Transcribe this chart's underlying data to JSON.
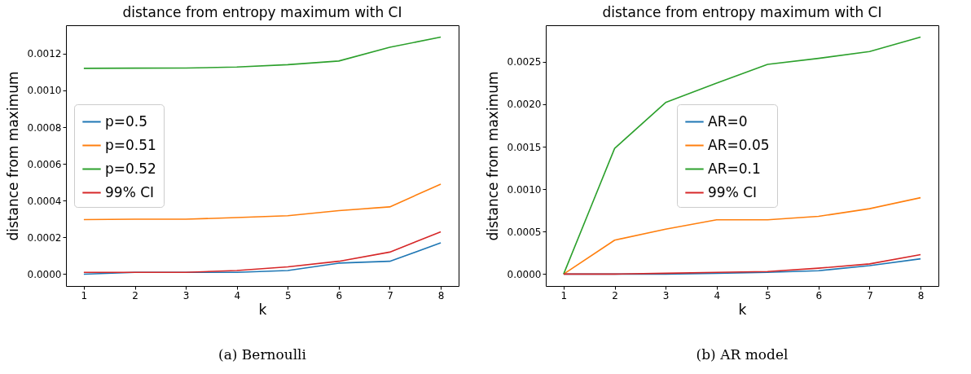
{
  "chart_data": [
    {
      "type": "line",
      "title": "distance from entropy maximum with CI",
      "xlabel": "k",
      "ylabel": "distance from maximum",
      "x": [
        1,
        2,
        3,
        4,
        5,
        6,
        7,
        8
      ],
      "xlim": [
        0.65,
        8.35
      ],
      "xticks": [
        1,
        2,
        3,
        4,
        5,
        6,
        7,
        8
      ],
      "ylim": [
        -6.45e-05,
        0.0013545
      ],
      "yticks": [
        {
          "value": 0,
          "label": "0.0000"
        },
        {
          "value": 0.0002,
          "label": "0.0002"
        },
        {
          "value": 0.0004,
          "label": "0.0004"
        },
        {
          "value": 0.0006,
          "label": "0.0006"
        },
        {
          "value": 0.0008,
          "label": "0.0008"
        },
        {
          "value": 0.001,
          "label": "0.0010"
        },
        {
          "value": 0.0012,
          "label": "0.0012"
        }
      ],
      "grid": false,
      "legend": "left",
      "annotations": [
        "(a) Bernoulli"
      ],
      "series": [
        {
          "name": "p=0.5",
          "color": "#1f77b4",
          "values": [
            0,
            1e-05,
            1e-05,
            1e-05,
            2e-05,
            6e-05,
            7e-05,
            0.00017
          ]
        },
        {
          "name": "p=0.51",
          "color": "#ff7f0e",
          "values": [
            0.000297,
            0.000299,
            0.000299,
            0.000308,
            0.000318,
            0.000346,
            0.000366,
            0.00049
          ]
        },
        {
          "name": "p=0.52",
          "color": "#2ca02c",
          "values": [
            0.00112,
            0.001121,
            0.001122,
            0.001127,
            0.00114,
            0.00116,
            0.001235,
            0.00129
          ]
        },
        {
          "name": "99% CI",
          "color": "#d62728",
          "values": [
            1e-05,
            1e-05,
            1e-05,
            2e-05,
            4e-05,
            7e-05,
            0.00012,
            0.00023
          ]
        }
      ]
    },
    {
      "type": "line",
      "title": "distance from entropy maximum with CI",
      "xlabel": "k",
      "ylabel": "distance from maximum",
      "x": [
        1,
        2,
        3,
        4,
        5,
        6,
        7,
        8
      ],
      "xlim": [
        0.65,
        8.35
      ],
      "xticks": [
        1,
        2,
        3,
        4,
        5,
        6,
        7,
        8
      ],
      "ylim": [
        -0.00014,
        0.00293
      ],
      "yticks": [
        {
          "value": 0,
          "label": "0.0000"
        },
        {
          "value": 0.0005,
          "label": "0.0005"
        },
        {
          "value": 0.001,
          "label": "0.0010"
        },
        {
          "value": 0.0015,
          "label": "0.0015"
        },
        {
          "value": 0.002,
          "label": "0.0020"
        },
        {
          "value": 0.0025,
          "label": "0.0025"
        }
      ],
      "grid": false,
      "legend": "center",
      "annotations": [
        "(b) AR model"
      ],
      "series": [
        {
          "name": "AR=0",
          "color": "#1f77b4",
          "values": [
            0,
            0,
            0,
            1e-05,
            2e-05,
            4e-05,
            0.0001,
            0.00018
          ]
        },
        {
          "name": "AR=0.05",
          "color": "#ff7f0e",
          "values": [
            0,
            0.0004,
            0.00053,
            0.00064,
            0.00064,
            0.00068,
            0.00077,
            0.0009
          ]
        },
        {
          "name": "AR=0.1",
          "color": "#2ca02c",
          "values": [
            0,
            0.00148,
            0.00202,
            0.00225,
            0.00247,
            0.00254,
            0.00262,
            0.00279
          ]
        },
        {
          "name": "99% CI",
          "color": "#d62728",
          "values": [
            0,
            0,
            1e-05,
            2e-05,
            3e-05,
            7e-05,
            0.00012,
            0.00023
          ]
        }
      ]
    }
  ]
}
